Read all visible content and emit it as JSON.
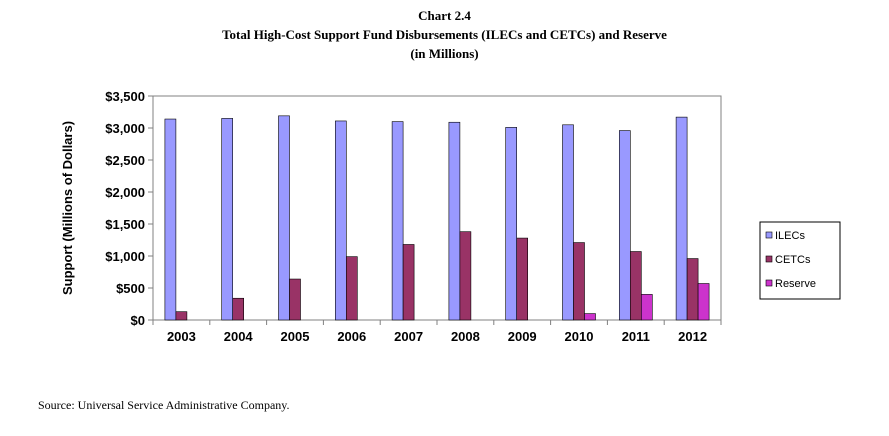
{
  "chart_data": {
    "type": "bar",
    "title": "Chart 2.4",
    "subtitle": "Total High-Cost Support Fund Disbursements (ILECs and CETCs) and Reserve",
    "subtitle2": "(in Millions)",
    "ylabel": "Support (Millions of Dollars)",
    "xlabel": "",
    "categories": [
      "2003",
      "2004",
      "2005",
      "2006",
      "2007",
      "2008",
      "2009",
      "2010",
      "2011",
      "2012"
    ],
    "series": [
      {
        "name": "ILECs",
        "color": "#9999ff",
        "values": [
          3140,
          3150,
          3190,
          3110,
          3100,
          3090,
          3010,
          3050,
          2960,
          3170
        ]
      },
      {
        "name": "CETCs",
        "color": "#993366",
        "values": [
          130,
          340,
          640,
          990,
          1180,
          1380,
          1280,
          1210,
          1070,
          960
        ]
      },
      {
        "name": "Reserve",
        "color": "#cc33cc",
        "values": [
          0,
          0,
          0,
          0,
          0,
          0,
          0,
          100,
          400,
          570
        ]
      }
    ],
    "ylim": [
      0,
      3500
    ],
    "yticks": [
      0,
      500,
      1000,
      1500,
      2000,
      2500,
      3000,
      3500
    ],
    "ytick_labels": [
      "$0",
      "$500",
      "$1,000",
      "$1,500",
      "$2,000",
      "$2,500",
      "$3,000",
      "$3,500"
    ],
    "grid": false,
    "legend": "right"
  },
  "source_note": "Source: Universal Service Administrative Company."
}
